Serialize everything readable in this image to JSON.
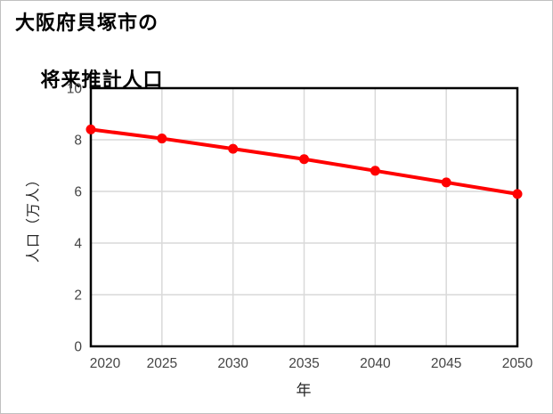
{
  "window": {
    "background": "#ffffff",
    "frame_color": "#c0c0c0"
  },
  "title": {
    "line1": "大阪府貝塚市の",
    "line2": "将来推計人口"
  },
  "chart_data": {
    "type": "line",
    "title": "大阪府貝塚市の将来推計人口",
    "xlabel": "年",
    "ylabel": "人口（万人）",
    "x": [
      2020,
      2025,
      2030,
      2035,
      2040,
      2045,
      2050
    ],
    "x_tick_labels": [
      "2020",
      "2025",
      "2030",
      "2035",
      "2040",
      "2045",
      "2050"
    ],
    "series": [
      {
        "name": "将来推計人口",
        "values": [
          8.4,
          8.05,
          7.65,
          7.25,
          6.8,
          6.35,
          5.9
        ],
        "color": "#ff0000",
        "marker": "circle"
      }
    ],
    "xlim": [
      2020,
      2050
    ],
    "ylim": [
      0,
      10
    ],
    "yticks": [
      0,
      2,
      4,
      6,
      8,
      10
    ],
    "grid": true,
    "legend_position": "none",
    "grid_color": "#d9d9d9",
    "axis_color": "#000000",
    "tick_label_color": "#444444",
    "axis_title_color": "#262626"
  }
}
